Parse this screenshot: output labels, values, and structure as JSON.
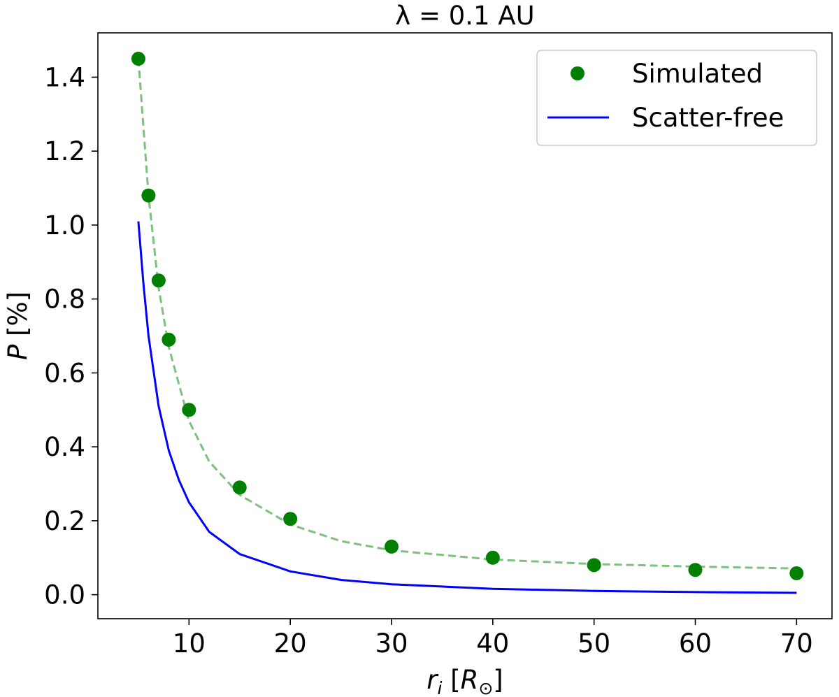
{
  "chart_data": {
    "type": "scatter",
    "title": "λ = 0.1 AU",
    "xlabel": "r_i [R_⊙]",
    "ylabel": "P [%]",
    "xlim": [
      1,
      73.5
    ],
    "ylim": [
      -0.065,
      1.52
    ],
    "xticks": [
      10,
      20,
      30,
      40,
      50,
      60,
      70
    ],
    "yticks": [
      0.0,
      0.2,
      0.4,
      0.6,
      0.8,
      1.0,
      1.2,
      1.4
    ],
    "ytick_labels": [
      "0.0",
      "0.2",
      "0.4",
      "0.6",
      "0.8",
      "1.0",
      "1.2",
      "1.4"
    ],
    "grid": false,
    "legend_position": "top-right",
    "series": [
      {
        "name": "Simulated",
        "kind": "markers",
        "color": "#008000",
        "x": [
          5,
          6,
          7,
          8,
          10,
          15,
          20,
          30,
          40,
          50,
          60,
          70
        ],
        "y": [
          1.45,
          1.08,
          0.85,
          0.69,
          0.5,
          0.29,
          0.205,
          0.13,
          0.1,
          0.08,
          0.067,
          0.058
        ]
      },
      {
        "kind": "dashed-fit",
        "color": "#7fbf7f",
        "x": [
          5,
          6,
          7,
          8,
          10,
          12,
          15,
          20,
          25,
          30,
          40,
          50,
          60,
          70
        ],
        "y": [
          1.45,
          1.08,
          0.83,
          0.67,
          0.47,
          0.36,
          0.27,
          0.19,
          0.145,
          0.12,
          0.095,
          0.083,
          0.076,
          0.071
        ]
      },
      {
        "name": "Scatter-free",
        "kind": "line",
        "color": "#0000ff",
        "x": [
          5,
          5.5,
          6,
          7,
          8,
          9,
          10,
          12,
          15,
          20,
          25,
          30,
          40,
          50,
          60,
          70
        ],
        "y": [
          1.01,
          0.84,
          0.7,
          0.51,
          0.39,
          0.31,
          0.25,
          0.17,
          0.11,
          0.063,
          0.04,
          0.028,
          0.016,
          0.01,
          0.007,
          0.005
        ]
      }
    ]
  }
}
